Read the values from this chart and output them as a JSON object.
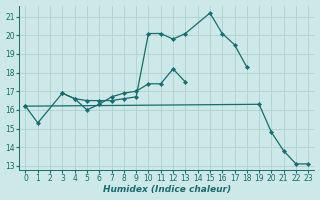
{
  "bg_color": "#cce8e8",
  "grid_color": "#aacccc",
  "line_color": "#1a6b6b",
  "xlabel": "Humidex (Indice chaleur)",
  "xlim": [
    -0.5,
    23.5
  ],
  "ylim": [
    12.8,
    21.6
  ],
  "yticks": [
    13,
    14,
    15,
    16,
    17,
    18,
    19,
    20,
    21
  ],
  "xticks": [
    0,
    1,
    2,
    3,
    4,
    5,
    6,
    7,
    8,
    9,
    10,
    11,
    12,
    13,
    14,
    15,
    16,
    17,
    18,
    19,
    20,
    21,
    22,
    23
  ],
  "lines": [
    {
      "x": [
        0,
        1,
        3,
        4,
        5,
        6,
        7,
        8,
        9,
        10,
        11,
        12,
        13
      ],
      "y": [
        16.2,
        15.3,
        16.9,
        16.6,
        16.0,
        16.3,
        16.7,
        16.9,
        17.0,
        17.4,
        17.4,
        18.2,
        17.5
      ]
    },
    {
      "x": [
        3,
        4,
        5,
        6,
        7,
        8,
        9,
        10,
        11,
        12,
        13,
        15,
        16,
        17,
        18
      ],
      "y": [
        16.9,
        16.6,
        16.5,
        16.5,
        16.5,
        16.6,
        16.7,
        20.1,
        20.1,
        19.8,
        20.1,
        21.2,
        20.1,
        19.5,
        18.3
      ]
    },
    {
      "x": [
        0,
        19,
        20,
        21,
        22,
        23
      ],
      "y": [
        16.2,
        16.3,
        14.8,
        13.8,
        13.1,
        13.1
      ]
    }
  ]
}
